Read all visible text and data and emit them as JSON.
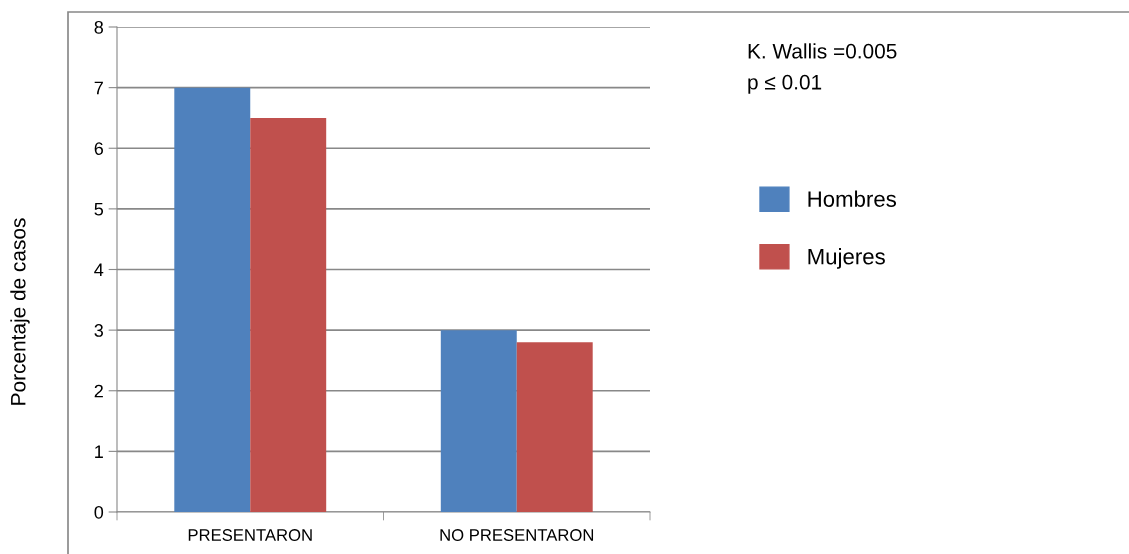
{
  "chart_data": {
    "type": "bar",
    "ylabel": "Porcentaje de casos",
    "categories": [
      "PRESENTARON",
      "NO PRESENTARON"
    ],
    "series": [
      {
        "name": "Hombres",
        "color": "#4f81bd",
        "values": [
          7,
          3
        ]
      },
      {
        "name": "Mujeres",
        "color": "#c0504d",
        "values": [
          6.5,
          2.8
        ]
      }
    ],
    "ylim": [
      0,
      8
    ],
    "yticks": [
      0,
      1,
      2,
      3,
      4,
      5,
      6,
      7,
      8
    ],
    "grid": "y",
    "legend": "right",
    "annotations": [
      "K. Wallis =0.005",
      "p ≤ 0.01"
    ]
  }
}
